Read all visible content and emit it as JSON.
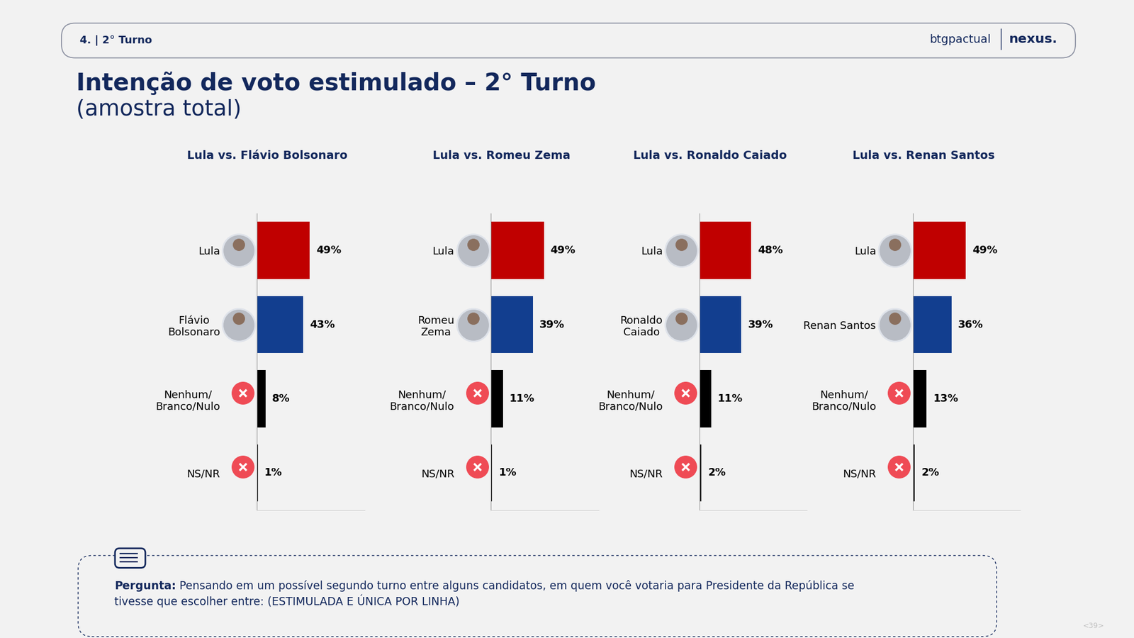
{
  "header": "4. | 2° Turno",
  "logos": [
    "btgpactual",
    "nexus."
  ],
  "title": "Intenção de voto estimulado – 2° Turno",
  "subtitle": "(amostra total)",
  "question_label": "Pergunta:",
  "question": "Pensando em um possível segundo turno entre alguns candidatos, em quem você votaria para Presidente da República se\ntivesse que escolher entre: (ESTIMULADA E ÚNICA POR LINHA)",
  "page": "<39>",
  "chart_data": [
    {
      "type": "bar",
      "orientation": "horizontal",
      "title": "Lula vs. Flávio Bolsonaro",
      "categories": [
        "Lula",
        "Flávio\nBolsonaro",
        "Nenhum/\nBranco/Nulo",
        "NS/NR"
      ],
      "values": [
        49,
        43,
        8,
        1
      ],
      "value_labels": [
        "49%",
        "43%",
        "8%",
        "1%"
      ],
      "colors": [
        "#c00000",
        "#123e8f",
        "#000000",
        "#000000"
      ],
      "xlim": [
        0,
        100
      ],
      "xticks": [],
      "data_labels": true,
      "tick_labels": "y",
      "grid": false
    },
    {
      "type": "bar",
      "orientation": "horizontal",
      "title": "Lula vs. Romeu Zema",
      "categories": [
        "Lula",
        "Romeu\nZema",
        "Nenhum/\nBranco/Nulo",
        "NS/NR"
      ],
      "values": [
        49,
        39,
        11,
        1
      ],
      "value_labels": [
        "49%",
        "39%",
        "11%",
        "1%"
      ],
      "colors": [
        "#c00000",
        "#123e8f",
        "#000000",
        "#000000"
      ],
      "xlim": [
        0,
        100
      ],
      "xticks": [],
      "data_labels": true,
      "tick_labels": "y",
      "grid": false
    },
    {
      "type": "bar",
      "orientation": "horizontal",
      "title": "Lula vs. Ronaldo Caiado",
      "categories": [
        "Lula",
        "Ronaldo\nCaiado",
        "Nenhum/\nBranco/Nulo",
        "NS/NR"
      ],
      "values": [
        48,
        39,
        11,
        2
      ],
      "value_labels": [
        "48%",
        "39%",
        "11%",
        "2%"
      ],
      "colors": [
        "#c00000",
        "#123e8f",
        "#000000",
        "#000000"
      ],
      "xlim": [
        0,
        100
      ],
      "xticks": [],
      "data_labels": true,
      "tick_labels": "y",
      "grid": false
    },
    {
      "type": "bar",
      "orientation": "horizontal",
      "title": "Lula vs. Renan Santos",
      "categories": [
        "Lula",
        "Renan Santos",
        "Nenhum/\nBranco/Nulo",
        "NS/NR"
      ],
      "values": [
        49,
        36,
        13,
        2
      ],
      "value_labels": [
        "49%",
        "36%",
        "13%",
        "2%"
      ],
      "colors": [
        "#c00000",
        "#123e8f",
        "#000000",
        "#000000"
      ],
      "xlim": [
        0,
        100
      ],
      "xticks": [],
      "data_labels": true,
      "tick_labels": "y",
      "grid": false
    }
  ]
}
